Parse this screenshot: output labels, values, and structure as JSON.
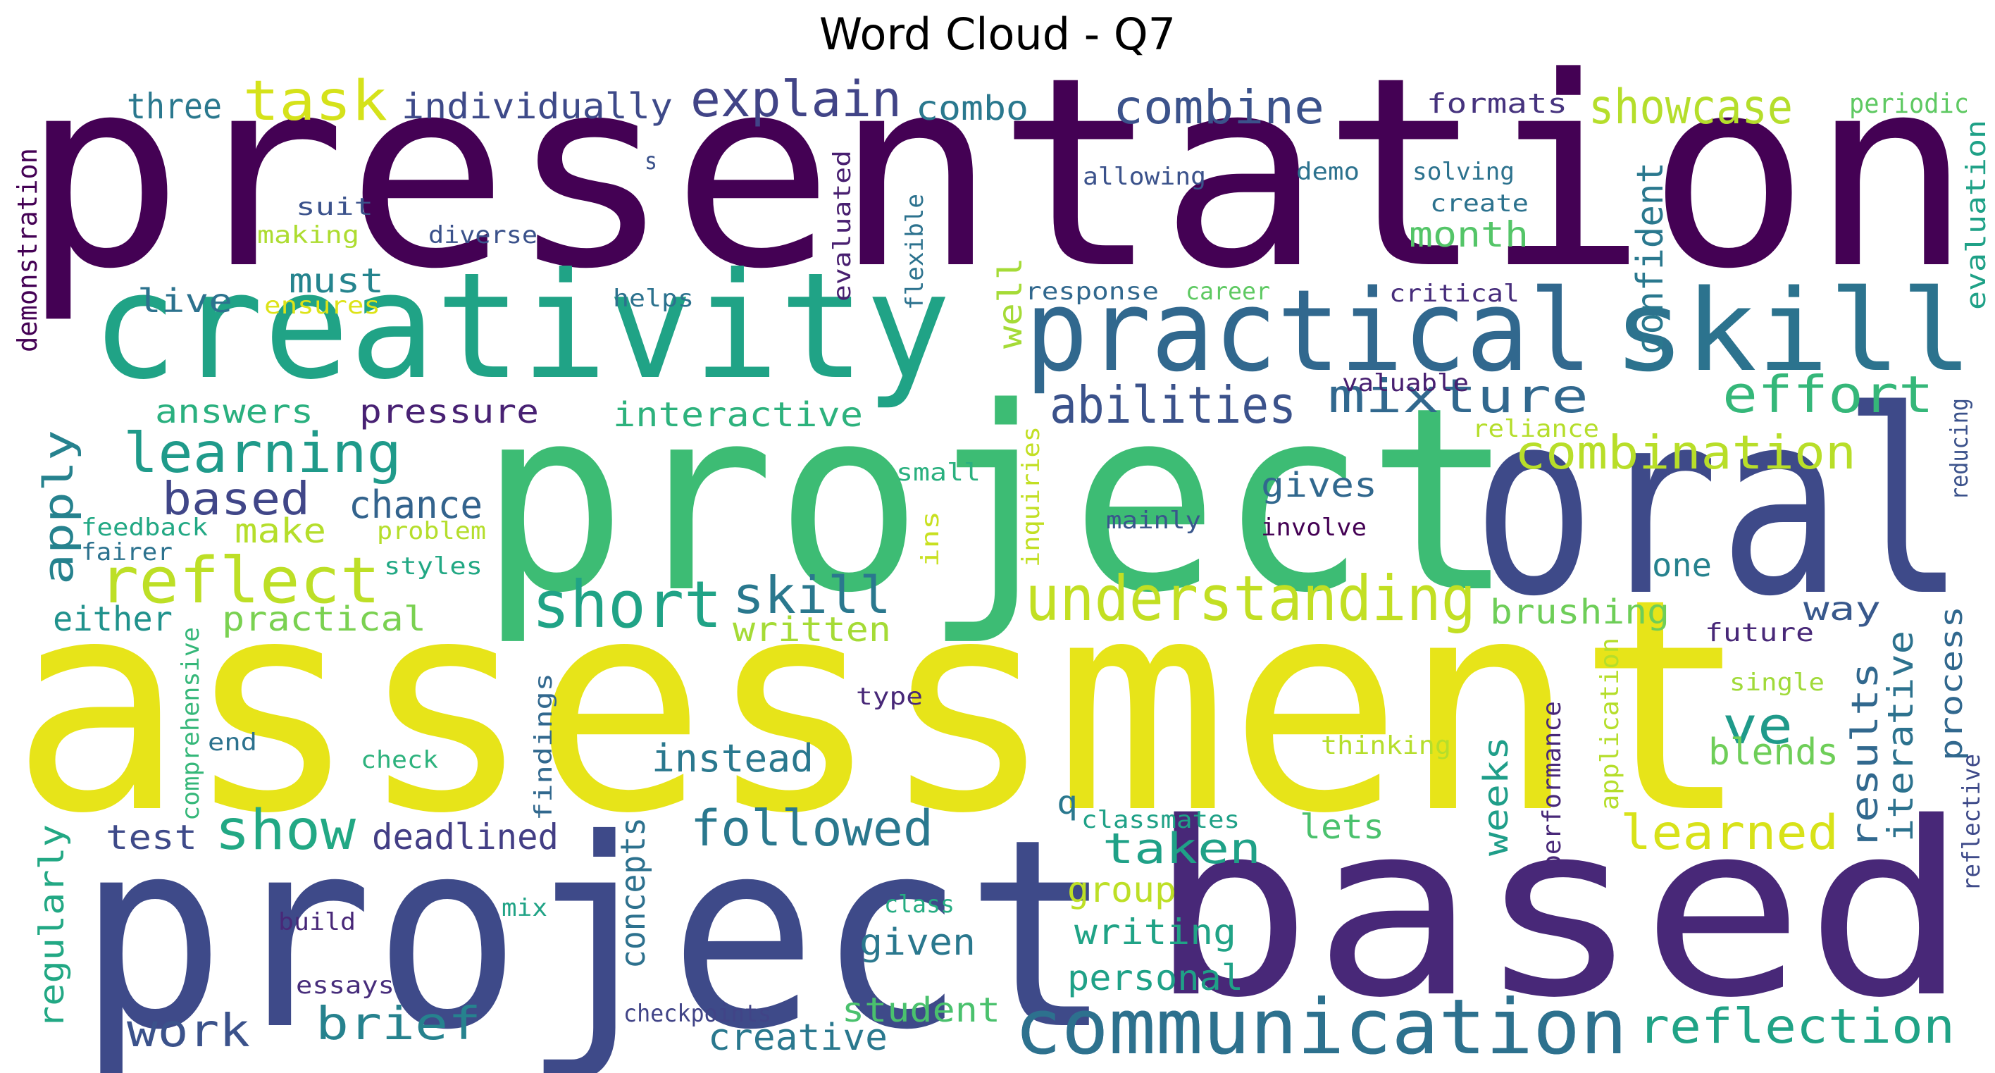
{
  "title": "Word Cloud - Q7",
  "words": [
    {
      "text": "presentation",
      "color": "#440154"
    },
    {
      "text": "assessment",
      "color": "#e7e419"
    },
    {
      "text": "project",
      "color": "#3e4a89"
    },
    {
      "text": "based",
      "color": "#482878"
    },
    {
      "text": "project",
      "color": "#3dbc74"
    },
    {
      "text": "creativity",
      "color": "#20a386"
    },
    {
      "text": "practical",
      "color": "#31688e"
    },
    {
      "text": "skill",
      "color": "#2c738e"
    },
    {
      "text": "oral",
      "color": "#3e4a89"
    },
    {
      "text": "communication",
      "color": "#2d718e"
    },
    {
      "text": "understanding",
      "color": "#c2df23"
    },
    {
      "text": "short",
      "color": "#20a386"
    },
    {
      "text": "reflect",
      "color": "#bddf26"
    },
    {
      "text": "learning",
      "color": "#1f9a8a"
    },
    {
      "text": "task",
      "color": "#d5e21a"
    },
    {
      "text": "explain",
      "color": "#414487"
    },
    {
      "text": "combine",
      "color": "#3b528b"
    },
    {
      "text": "showcase",
      "color": "#b5de2b"
    },
    {
      "text": "three",
      "color": "#2a788e"
    },
    {
      "text": "individually",
      "color": "#3e4a89"
    },
    {
      "text": "combo",
      "color": "#2a788e"
    },
    {
      "text": "formats",
      "color": "#46337e"
    },
    {
      "text": "periodic",
      "color": "#5ec962"
    },
    {
      "text": "evaluation",
      "color": "#1fa187"
    },
    {
      "text": "demonstration",
      "color": "#440154"
    },
    {
      "text": "abilities",
      "color": "#3b528b"
    },
    {
      "text": "mixture",
      "color": "#31688e"
    },
    {
      "text": "effort",
      "color": "#35b779"
    },
    {
      "text": "combination",
      "color": "#b8de29"
    },
    {
      "text": "skill",
      "color": "#2a788e"
    },
    {
      "text": "answers",
      "color": "#2ab07f"
    },
    {
      "text": "pressure",
      "color": "#482173"
    },
    {
      "text": "interactive",
      "color": "#2db27d"
    },
    {
      "text": "based",
      "color": "#404688"
    },
    {
      "text": "chance",
      "color": "#33638d"
    },
    {
      "text": "apply",
      "color": "#26828e"
    },
    {
      "text": "make",
      "color": "#b5de2b"
    },
    {
      "text": "feedback",
      "color": "#22a884"
    },
    {
      "text": "fairer",
      "color": "#2c728e"
    },
    {
      "text": "problem",
      "color": "#b5de2b"
    },
    {
      "text": "styles",
      "color": "#22a884"
    },
    {
      "text": "either",
      "color": "#20928c"
    },
    {
      "text": "practical",
      "color": "#7ad151"
    },
    {
      "text": "written",
      "color": "#a5db36"
    },
    {
      "text": "gives",
      "color": "#31688e"
    },
    {
      "text": "involve",
      "color": "#440154"
    },
    {
      "text": "mainly",
      "color": "#39568c"
    },
    {
      "text": "brushing",
      "color": "#6ece58"
    },
    {
      "text": "one",
      "color": "#26828e"
    },
    {
      "text": "way",
      "color": "#38588c"
    },
    {
      "text": "results",
      "color": "#31688e"
    },
    {
      "text": "iterative",
      "color": "#2c728e"
    },
    {
      "text": "process",
      "color": "#31688e"
    },
    {
      "text": "reflective",
      "color": "#3e4a89"
    },
    {
      "text": "reducing",
      "color": "#3b528b"
    },
    {
      "text": "future",
      "color": "#482878"
    },
    {
      "text": "single",
      "color": "#a0da39"
    },
    {
      "text": "ve",
      "color": "#1f9a8a"
    },
    {
      "text": "blends",
      "color": "#6ece58"
    },
    {
      "text": "learned",
      "color": "#d8e219"
    },
    {
      "text": "performance",
      "color": "#482878"
    },
    {
      "text": "application",
      "color": "#b5de2b"
    },
    {
      "text": "thinking",
      "color": "#b5de2b"
    },
    {
      "text": "weeks",
      "color": "#1f9e89"
    },
    {
      "text": "lets",
      "color": "#4ac16d"
    },
    {
      "text": "classmates",
      "color": "#1fa187"
    },
    {
      "text": "q",
      "color": "#2a788e"
    },
    {
      "text": "instead",
      "color": "#2a788e"
    },
    {
      "text": "concepts",
      "color": "#2d718e"
    },
    {
      "text": "followed",
      "color": "#2a788e"
    },
    {
      "text": "taken",
      "color": "#1fa187"
    },
    {
      "text": "group",
      "color": "#bddf26"
    },
    {
      "text": "writing",
      "color": "#20a386"
    },
    {
      "text": "personal",
      "color": "#1fa187"
    },
    {
      "text": "given",
      "color": "#2a788e"
    },
    {
      "text": "communication",
      "color": "#2d718e"
    },
    {
      "text": "reflection",
      "color": "#20a386"
    },
    {
      "text": "show",
      "color": "#22a884"
    },
    {
      "text": "deadlined",
      "color": "#433e85"
    },
    {
      "text": "test",
      "color": "#3e4a89"
    },
    {
      "text": "regularly",
      "color": "#22a884"
    },
    {
      "text": "work",
      "color": "#3b528b"
    },
    {
      "text": "brief",
      "color": "#26828e"
    },
    {
      "text": "creative",
      "color": "#2a788e"
    },
    {
      "text": "student",
      "color": "#4ac16d"
    },
    {
      "text": "checkpoints",
      "color": "#414487"
    },
    {
      "text": "essays",
      "color": "#472d7b"
    },
    {
      "text": "build",
      "color": "#482878"
    },
    {
      "text": "mix",
      "color": "#20a386"
    },
    {
      "text": "class",
      "color": "#25ac82"
    },
    {
      "text": "check",
      "color": "#2db27d"
    },
    {
      "text": "end",
      "color": "#2c728e"
    },
    {
      "text": "comprehensive",
      "color": "#35b779"
    },
    {
      "text": "findings",
      "color": "#31688e"
    },
    {
      "text": "type",
      "color": "#482878"
    },
    {
      "text": "live",
      "color": "#2c728e"
    },
    {
      "text": "must",
      "color": "#25848e"
    },
    {
      "text": "ensures",
      "color": "#dde318"
    },
    {
      "text": "making",
      "color": "#addc30"
    },
    {
      "text": "suit",
      "color": "#3b528b"
    },
    {
      "text": "diverse",
      "color": "#3b528b"
    },
    {
      "text": "s",
      "color": "#3b528b"
    },
    {
      "text": "evaluated",
      "color": "#481f70"
    },
    {
      "text": "flexible",
      "color": "#2c728e"
    },
    {
      "text": "well",
      "color": "#a5db36"
    },
    {
      "text": "helps",
      "color": "#2c728e"
    },
    {
      "text": "response",
      "color": "#31688e"
    },
    {
      "text": "career",
      "color": "#5ec962"
    },
    {
      "text": "critical",
      "color": "#472d7b"
    },
    {
      "text": "allowing",
      "color": "#3b528b"
    },
    {
      "text": "demo",
      "color": "#2c728e"
    },
    {
      "text": "solving",
      "color": "#2c728e"
    },
    {
      "text": "create",
      "color": "#2c728e"
    },
    {
      "text": "month",
      "color": "#54c568"
    },
    {
      "text": "confident",
      "color": "#2a788e"
    },
    {
      "text": "valuable",
      "color": "#481f70"
    },
    {
      "text": "reliance",
      "color": "#b5de2b"
    },
    {
      "text": "small",
      "color": "#2ab07f"
    },
    {
      "text": "inquiries",
      "color": "#c2df23"
    },
    {
      "text": "ins",
      "color": "#c8e020"
    }
  ]
}
